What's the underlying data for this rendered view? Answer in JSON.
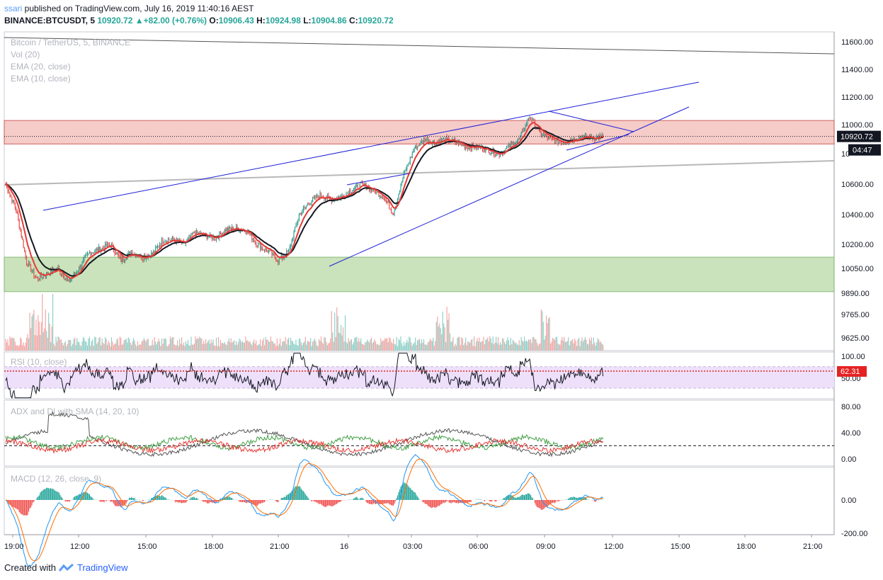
{
  "header": {
    "user": "ssari",
    "published_text": " published on TradingView.com, July 16, 2019 11:40:16 AEST",
    "symbol": "BINANCE:BTCUSDT, 5",
    "last": "10920.72",
    "change": "▲+82.00 (+0.76%)",
    "o_label": "O:",
    "o_val": "10906.43",
    "h_label": "H:",
    "h_val": "10924.98",
    "l_label": "L:",
    "l_val": "10904.86",
    "c_label": "C:",
    "c_val": "10920.72"
  },
  "legend": {
    "main": [
      "Bitcoin / TetherUS, 5, BINANCE",
      "Vol (20)",
      "EMA (20, close)",
      "EMA (10, close)"
    ],
    "rsi": "RSI (10, close)",
    "adx": "ADX and DI with SMA (14, 20, 10)",
    "macd": "MACD (12, 26, close, 9)"
  },
  "footer": {
    "created": "Created with",
    "brand": "TradingView"
  },
  "colors": {
    "up": "#26a69a",
    "down": "#ef5350",
    "ema20": "#131722",
    "ema10": "#e53935",
    "trend": "#1e1ed8",
    "resistance_zone": "#f4c7c3",
    "support_zone": "#c5e1b5",
    "price_label_bg": "#131722",
    "rsi_label_bg": "#e52222"
  },
  "chart_data": [
    {
      "type": "candlestick",
      "title": "Bitcoin / TetherUS, 5, BINANCE",
      "price_axis_ticks": [
        "11600.00",
        "11400.00",
        "11200.00",
        "11000.00",
        "10600.00",
        "10400.00",
        "10200.00",
        "10050.00",
        "9890.00",
        "9765.00",
        "9625.00"
      ],
      "time_axis_ticks": [
        "19:00",
        "12:00",
        "15:00",
        "18:00",
        "21:00",
        "16",
        "03:00",
        "06:00",
        "09:00",
        "12:00",
        "15:00",
        "18:00",
        "21:00"
      ],
      "last_price_label": "10920.72",
      "countdown_label": "04:47",
      "partial_axis_label": "10",
      "price_path": [
        [
          0,
          10600
        ],
        [
          10,
          10430
        ],
        [
          20,
          10090
        ],
        [
          30,
          9980
        ],
        [
          40,
          10020
        ],
        [
          50,
          10050
        ],
        [
          60,
          9960
        ],
        [
          70,
          10050
        ],
        [
          80,
          10150
        ],
        [
          90,
          10170
        ],
        [
          100,
          10200
        ],
        [
          110,
          10100
        ],
        [
          120,
          10150
        ],
        [
          130,
          10120
        ],
        [
          140,
          10140
        ],
        [
          150,
          10230
        ],
        [
          160,
          10230
        ],
        [
          170,
          10200
        ],
        [
          180,
          10280
        ],
        [
          190,
          10260
        ],
        [
          200,
          10240
        ],
        [
          210,
          10300
        ],
        [
          220,
          10310
        ],
        [
          230,
          10290
        ],
        [
          240,
          10200
        ],
        [
          250,
          10160
        ],
        [
          260,
          10100
        ],
        [
          270,
          10150
        ],
        [
          280,
          10400
        ],
        [
          290,
          10480
        ],
        [
          300,
          10530
        ],
        [
          310,
          10500
        ],
        [
          320,
          10520
        ],
        [
          330,
          10560
        ],
        [
          340,
          10600
        ],
        [
          350,
          10560
        ],
        [
          360,
          10520
        ],
        [
          370,
          10410
        ],
        [
          380,
          10670
        ],
        [
          390,
          10840
        ],
        [
          400,
          10900
        ],
        [
          410,
          10880
        ],
        [
          420,
          10900
        ],
        [
          430,
          10880
        ],
        [
          440,
          10850
        ],
        [
          450,
          10850
        ],
        [
          460,
          10830
        ],
        [
          470,
          10800
        ],
        [
          480,
          10850
        ],
        [
          490,
          10900
        ],
        [
          500,
          11060
        ],
        [
          510,
          10940
        ],
        [
          520,
          10900
        ],
        [
          530,
          10880
        ],
        [
          540,
          10900
        ],
        [
          550,
          10920
        ],
        [
          560,
          10910
        ],
        [
          570,
          10920.72
        ]
      ],
      "zones": [
        {
          "name": "resistance-zone",
          "from": 10870,
          "to": 11030
        },
        {
          "name": "support-zone",
          "from": 9900,
          "to": 10120
        }
      ]
    },
    {
      "type": "line",
      "title": "RSI (10, close)",
      "ticks": [
        "100.00",
        "62.31",
        "50.00"
      ],
      "value_label": "62.31"
    },
    {
      "type": "line",
      "title": "ADX and DI with SMA (14, 20, 10)",
      "ticks": [
        "80.00",
        "40.00",
        "0.00"
      ]
    },
    {
      "type": "line",
      "title": "MACD (12, 26, close, 9)",
      "ticks": [
        "0.00",
        "-200.00"
      ]
    }
  ]
}
